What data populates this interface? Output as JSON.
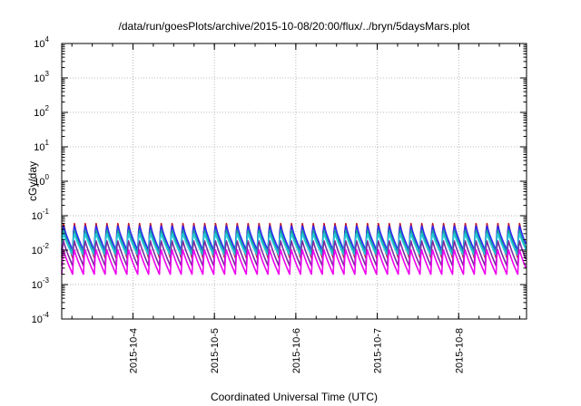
{
  "chart_data": {
    "type": "line",
    "title": "/data/run/goesPlots/archive/2015-10-08/20:00/flux/../bryn/5daysMars.plot",
    "xlabel": "Coordinated Universal Time (UTC)",
    "ylabel": "cGy/day",
    "yscale": "log",
    "ylim": [
      0.0001,
      10000
    ],
    "xlim": [
      "2015-10-03 03:00",
      "2015-10-08 20:00"
    ],
    "grid": true,
    "y_ticks": [
      {
        "base": "10",
        "exp": "-4"
      },
      {
        "base": "10",
        "exp": "-3"
      },
      {
        "base": "10",
        "exp": "-2"
      },
      {
        "base": "10",
        "exp": "-1"
      },
      {
        "base": "10",
        "exp": "0"
      },
      {
        "base": "10",
        "exp": "1"
      },
      {
        "base": "10",
        "exp": "2"
      },
      {
        "base": "10",
        "exp": "3"
      },
      {
        "base": "10",
        "exp": "4"
      }
    ],
    "x_ticks": [
      "2015-10-4",
      "2015-10-5",
      "2015-10-6",
      "2015-10-7",
      "2015-10-8"
    ],
    "sawtooth_period_hours": 3.2,
    "series": [
      {
        "color": "#d01010",
        "peak": 0.075,
        "trough": 0.006
      },
      {
        "color": "#2a2aff",
        "peak": 0.06,
        "trough": 0.01
      },
      {
        "color": "#1e9c9c",
        "peak": 0.045,
        "trough": 0.008
      },
      {
        "color": "#22ccdd",
        "peak": 0.035,
        "trough": 0.007
      },
      {
        "color": "#7a2aa0",
        "peak": 0.022,
        "trough": 0.0035
      },
      {
        "color": "#ee00ee",
        "peak": 0.012,
        "trough": 0.002
      }
    ]
  }
}
